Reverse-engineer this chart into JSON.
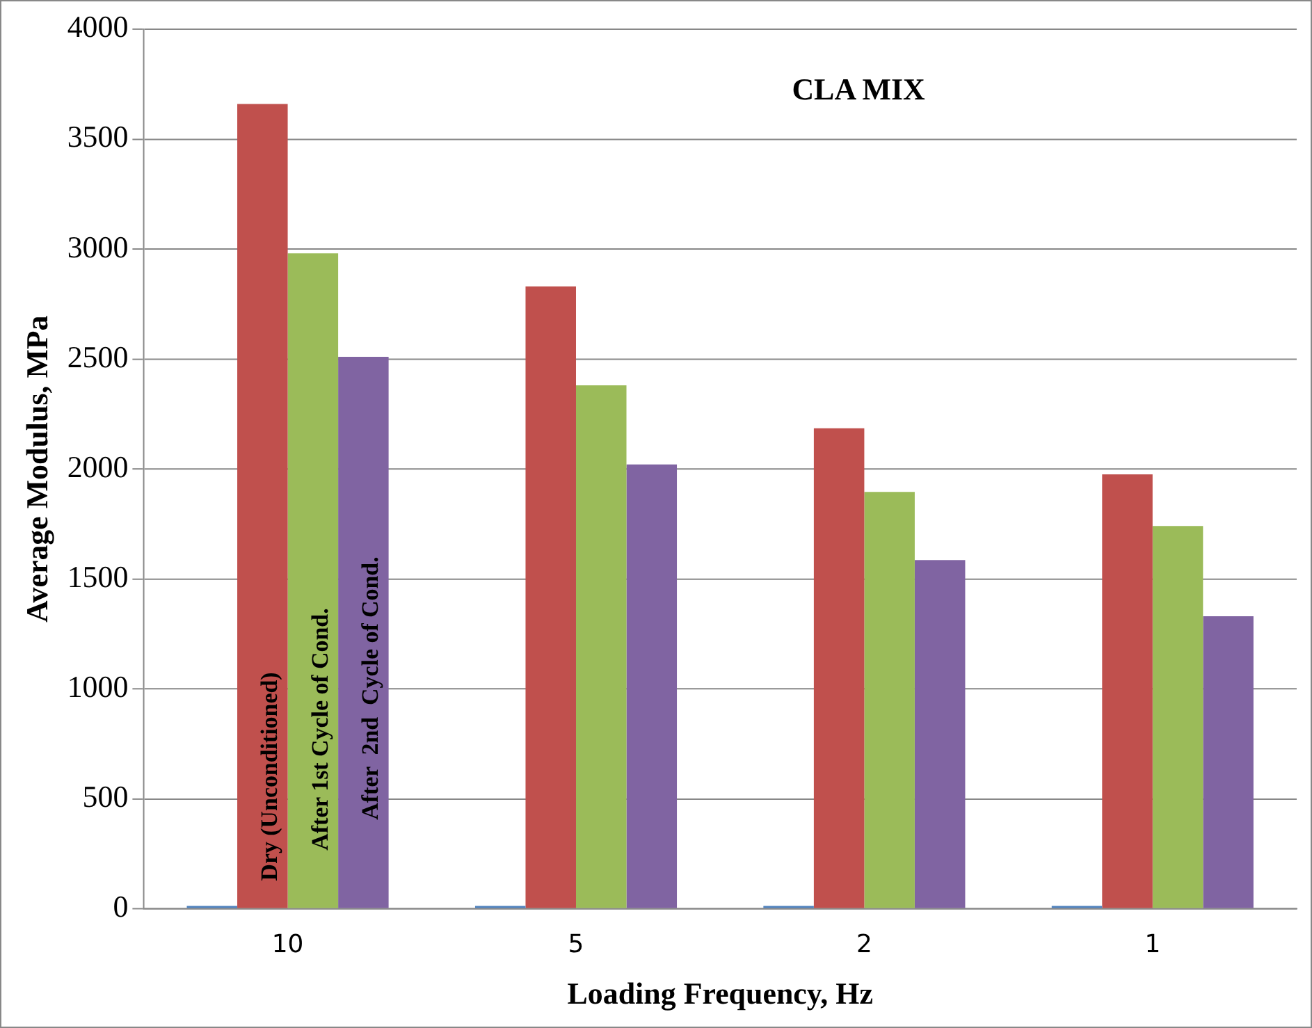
{
  "chart_data": {
    "type": "bar",
    "title": "CLA MIX",
    "xlabel": "Loading Frequency, Hz",
    "ylabel": "Average Modulus, MPa",
    "categories": [
      "10",
      "5",
      "2",
      "1"
    ],
    "series": [
      {
        "color": "#4f81bd",
        "values": [
          0,
          0,
          0,
          0
        ]
      },
      {
        "name": "Dry (Unconditioned)",
        "color": "#c0504d",
        "values": [
          3660,
          2830,
          2185,
          1975
        ]
      },
      {
        "name": "After 1st Cycle of Cond.",
        "color": "#9bbb59",
        "values": [
          2980,
          2380,
          1895,
          1740
        ]
      },
      {
        "name": "After  2nd  Cycle of Cond.",
        "color": "#8064a2",
        "values": [
          2510,
          2020,
          1585,
          1330
        ]
      }
    ],
    "ylim": [
      0,
      4000
    ],
    "yticks": [
      0,
      500,
      1000,
      1500,
      2000,
      2500,
      3000,
      3500,
      4000
    ],
    "grid": "y",
    "legend": false
  }
}
